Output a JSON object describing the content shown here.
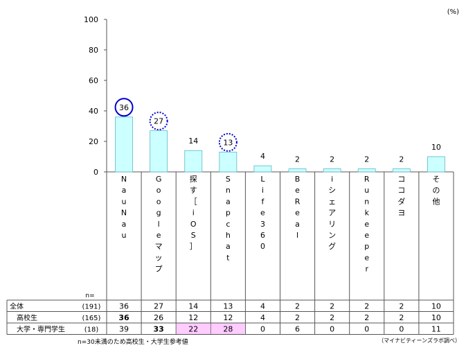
{
  "chart_data": {
    "type": "bar",
    "unit": "(%)",
    "ylim": [
      0,
      100
    ],
    "yticks": [
      0,
      20,
      40,
      60,
      80,
      100
    ],
    "categories": [
      "NauNau",
      "Googleマップ",
      "探す［iOS］",
      "Snapchat",
      "Life360",
      "BeReal",
      "iシェアリング",
      "Runkeeper",
      "ココダヨ",
      "その他"
    ],
    "values": [
      36,
      27,
      14,
      13,
      4,
      2,
      2,
      2,
      2,
      10
    ],
    "circled": [
      {
        "index": 0,
        "style": "solid"
      },
      {
        "index": 1,
        "style": "dotted"
      },
      {
        "index": 3,
        "style": "dotted"
      }
    ],
    "bar_color": "#ccffff",
    "bar_edge": "#5bb8c8",
    "circle_color": "#0000cc",
    "highlight_color": "#ffccff",
    "table": {
      "n_header": "n=",
      "rows": [
        {
          "label": "全体",
          "n": "(191)",
          "values": [
            36,
            27,
            14,
            13,
            4,
            2,
            2,
            2,
            2,
            10
          ],
          "bold": [],
          "highlight": []
        },
        {
          "label": "高校生",
          "n": "(165)",
          "values": [
            36,
            26,
            12,
            12,
            4,
            2,
            2,
            2,
            2,
            10
          ],
          "bold": [
            0
          ],
          "highlight": []
        },
        {
          "label": "大学・専門学生",
          "n": "(18)",
          "values": [
            39,
            33,
            22,
            28,
            0,
            6,
            0,
            0,
            0,
            11
          ],
          "bold": [
            1
          ],
          "highlight": [
            2,
            3
          ]
        }
      ]
    }
  },
  "footnote": "n=30未満のため高校生・大学生参考値",
  "source": "（マイナビティーンズラボ調べ）"
}
